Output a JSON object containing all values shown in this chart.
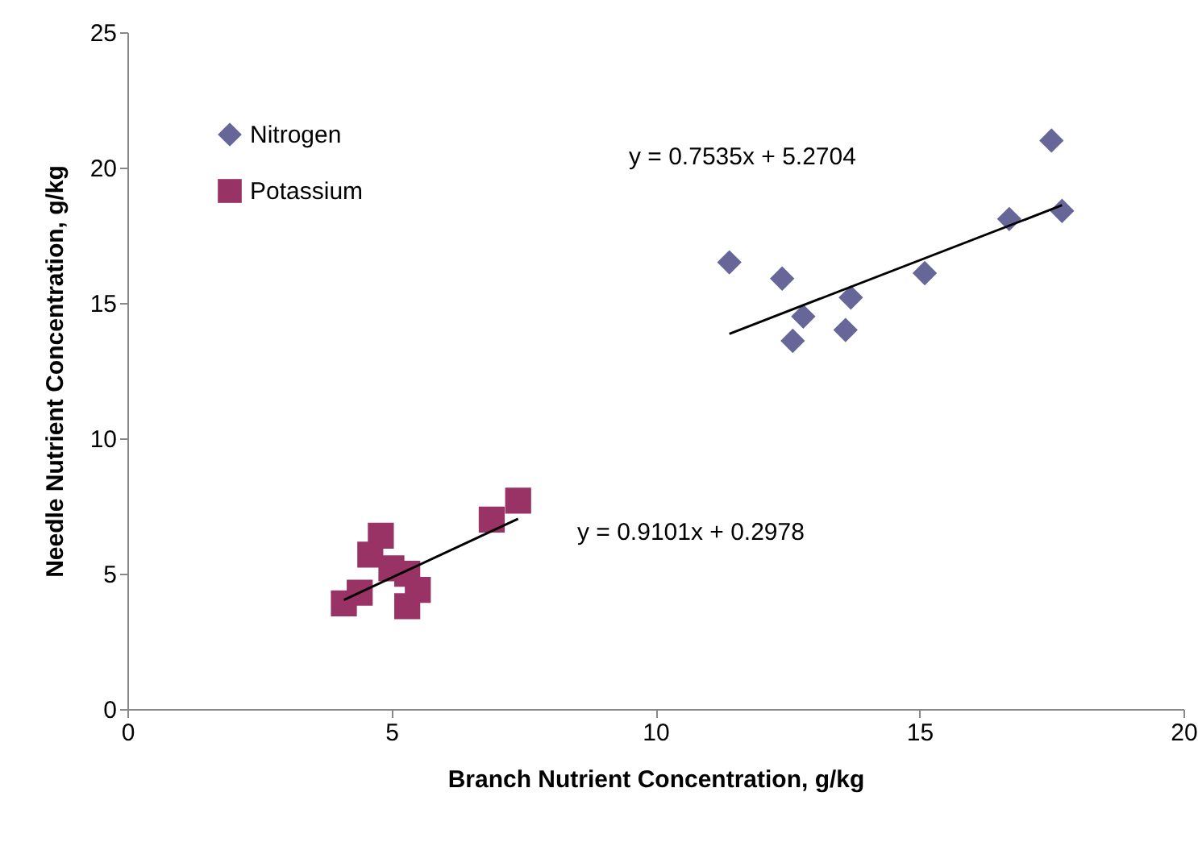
{
  "chart_data": {
    "type": "scatter",
    "xlabel": "Branch Nutrient Concentration, g/kg",
    "ylabel": "Needle Nutrient Concentration, g/kg",
    "xlim": [
      0,
      20
    ],
    "xticks": [
      0,
      5,
      10,
      15,
      20
    ],
    "ylim": [
      0,
      25
    ],
    "yticks": [
      0,
      5,
      10,
      15,
      20,
      25
    ],
    "legend": "top left",
    "series": [
      {
        "name": "Nitrogen",
        "color": "#666699",
        "marker": "diamond",
        "x": [
          11.4,
          12.4,
          12.8,
          12.6,
          13.7,
          13.6,
          15.1,
          16.7,
          17.5,
          17.7
        ],
        "values": [
          16.5,
          15.9,
          14.5,
          13.6,
          15.2,
          14.0,
          16.1,
          18.1,
          21.0,
          18.4
        ]
      },
      {
        "name": "Potassium",
        "color": "#993366",
        "marker": "square",
        "x": [
          4.1,
          4.4,
          4.8,
          4.6,
          5.3,
          5.5,
          5.3,
          5.0,
          6.9,
          7.4
        ],
        "values": [
          3.9,
          4.3,
          6.4,
          5.7,
          3.8,
          4.4,
          5.0,
          5.2,
          7.0,
          7.7
        ]
      },
      {
        "type": "line",
        "color": "#000000",
        "x": [
          11.4,
          17.7
        ],
        "values": [
          13.86,
          18.61
        ]
      },
      {
        "type": "line",
        "color": "#000000",
        "x": [
          4.1,
          7.4
        ],
        "values": [
          4.03,
          7.03
        ]
      }
    ],
    "annotations": [
      "y = 0.7535x + 5.2704",
      "y = 0.9101x + 0.2978"
    ]
  }
}
